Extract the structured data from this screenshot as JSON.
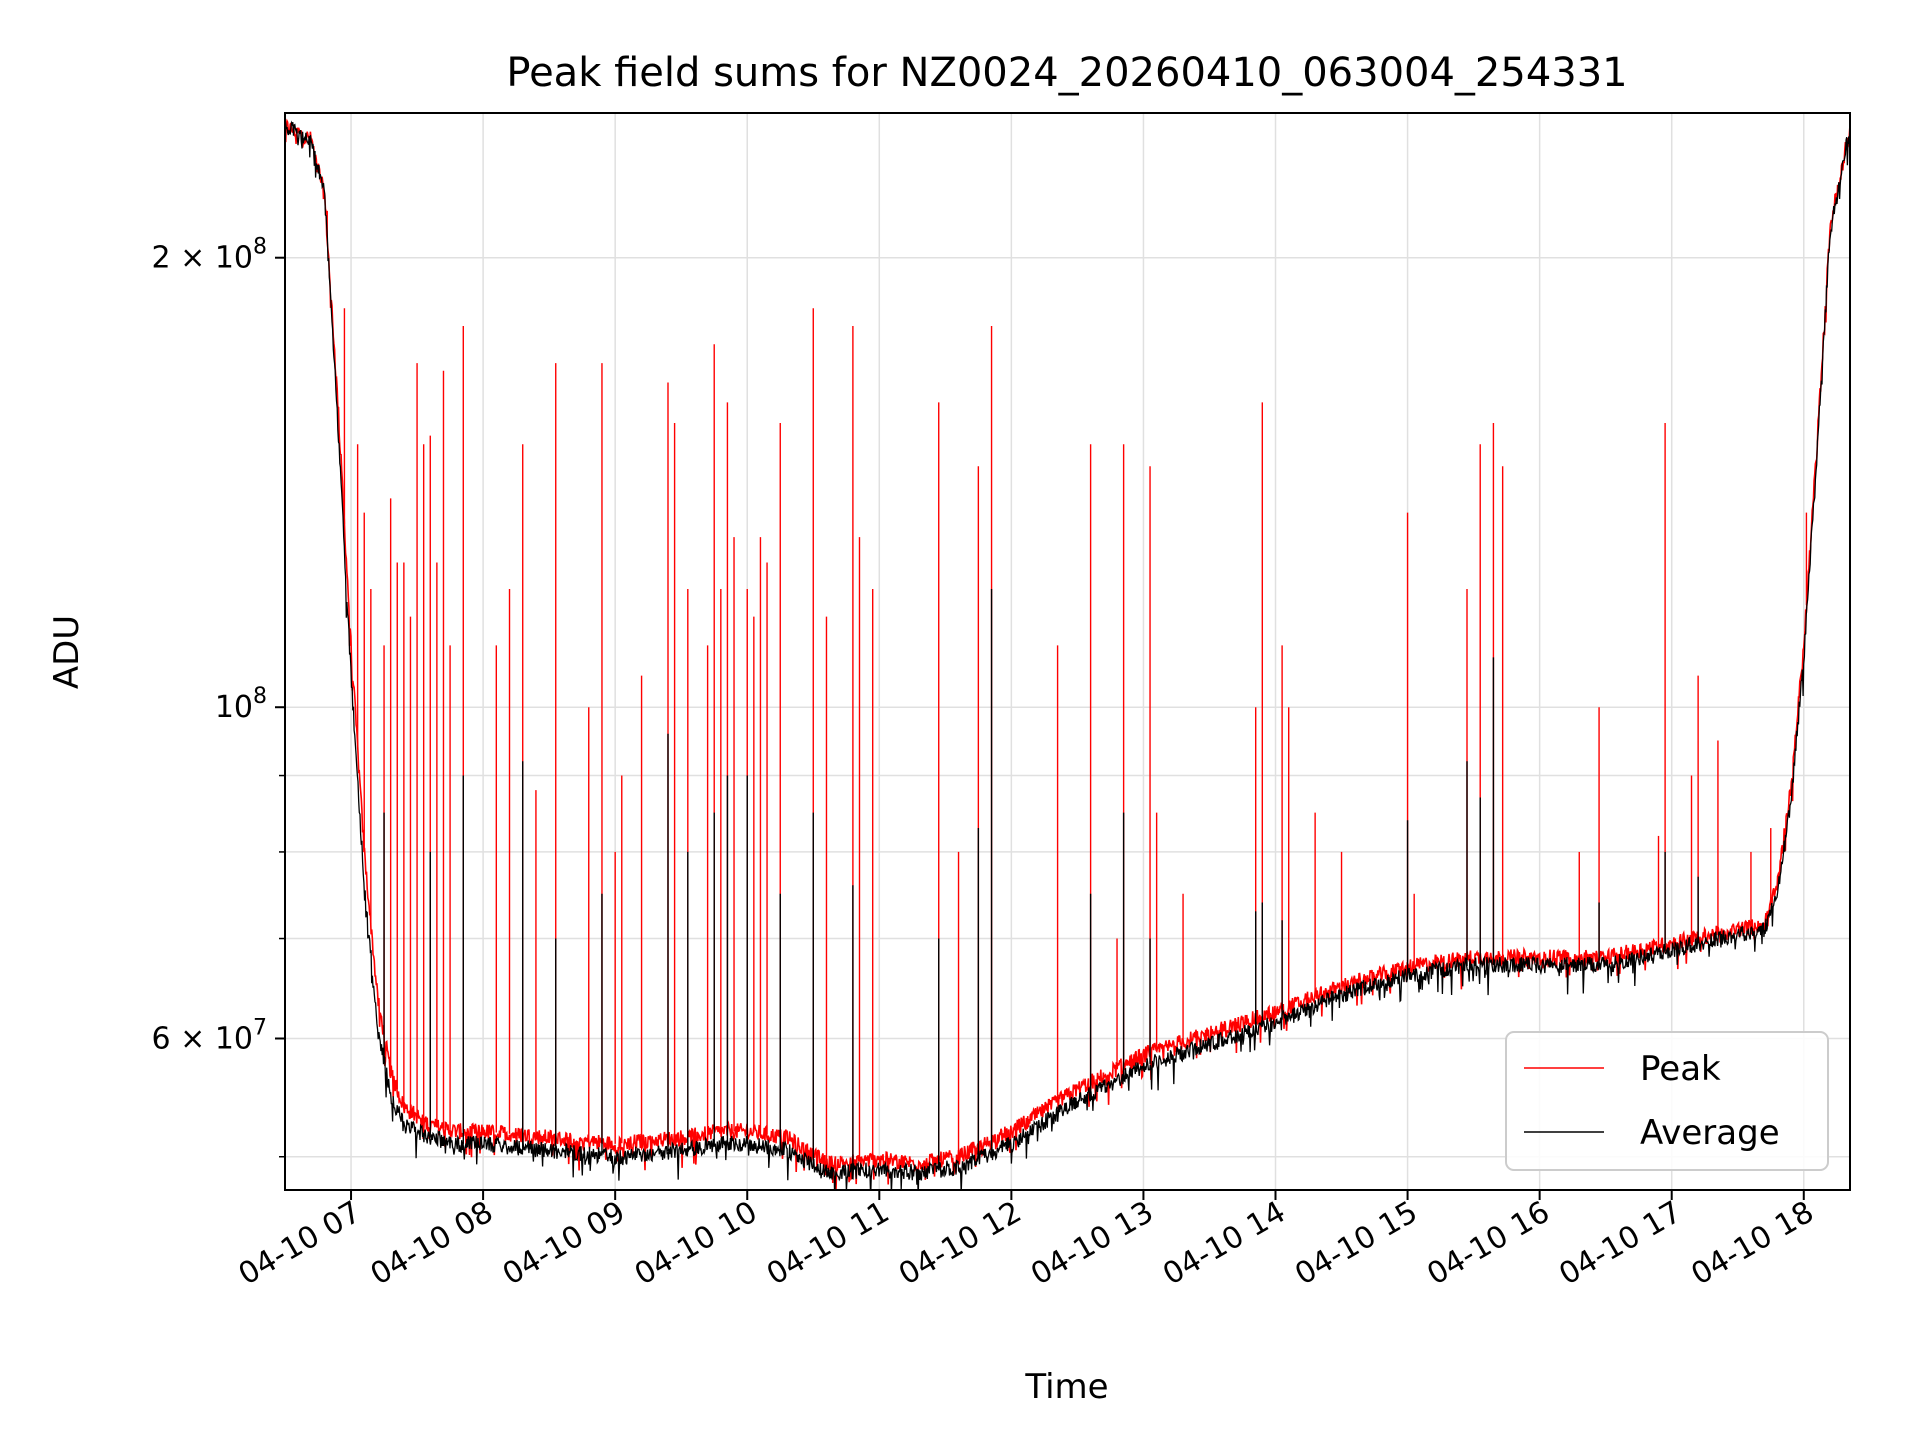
{
  "chart_data": {
    "type": "line",
    "title": "Peak field sums for NZ0024_20260410_063004_254331",
    "xlabel": "Time",
    "ylabel": "ADU",
    "yscale": "log",
    "xlim": [
      6.5,
      18.35
    ],
    "ylim": [
      47500000.0,
      250000000.0
    ],
    "x_unit": "hour of 2026-04-10",
    "grid": true,
    "legend_position": "lower-right",
    "x_ticks": [
      {
        "value": 7,
        "label": "04-10 07"
      },
      {
        "value": 8,
        "label": "04-10 08"
      },
      {
        "value": 9,
        "label": "04-10 09"
      },
      {
        "value": 10,
        "label": "04-10 10"
      },
      {
        "value": 11,
        "label": "04-10 11"
      },
      {
        "value": 12,
        "label": "04-10 12"
      },
      {
        "value": 13,
        "label": "04-10 13"
      },
      {
        "value": 14,
        "label": "04-10 14"
      },
      {
        "value": 15,
        "label": "04-10 15"
      },
      {
        "value": 16,
        "label": "04-10 16"
      },
      {
        "value": 17,
        "label": "04-10 17"
      },
      {
        "value": 18,
        "label": "04-10 18"
      }
    ],
    "y_major_ticks": [
      {
        "value": 60000000,
        "mantissa": "6",
        "exponent": "7"
      },
      {
        "value": 100000000,
        "mantissa": "",
        "exponent": "8"
      },
      {
        "value": 200000000,
        "mantissa": "2",
        "exponent": "8"
      }
    ],
    "y_minor_ticks": [
      50000000,
      70000000,
      80000000,
      90000000,
      300000000
    ],
    "times_symbol": "×",
    "base_label": "10",
    "series": [
      {
        "name": "Peak",
        "color": "#ff0000",
        "baseline": {
          "x": [
            6.5,
            6.7,
            6.8,
            6.9,
            7.0,
            7.1,
            7.2,
            7.3,
            7.4,
            7.6,
            7.8,
            8.0,
            8.5,
            9.0,
            9.5,
            9.8,
            10.0,
            10.3,
            10.6,
            11.0,
            11.3,
            11.6,
            12.0,
            12.5,
            13.0,
            13.5,
            14.0,
            14.5,
            15.0,
            15.5,
            16.0,
            16.5,
            17.0,
            17.5,
            17.7,
            17.8,
            17.9,
            18.0,
            18.1,
            18.2,
            18.35
          ],
          "y": [
            245000000.0,
            240000000.0,
            220000000.0,
            160000000.0,
            110000000.0,
            80000000.0,
            64000000.0,
            57000000.0,
            54000000.0,
            52500000.0,
            52000000.0,
            52000000.0,
            51500000.0,
            51000000.0,
            51500000.0,
            52000000.0,
            52000000.0,
            51500000.0,
            49500000.0,
            49800000.0,
            49500000.0,
            50000000.0,
            52000000.0,
            55500000.0,
            58500000.0,
            60500000.0,
            62500000.0,
            65000000.0,
            67000000.0,
            68000000.0,
            68000000.0,
            68000000.0,
            69500000.0,
            71000000.0,
            71500000.0,
            76000000.0,
            88000000.0,
            110000000.0,
            150000000.0,
            210000000.0,
            245000000.0
          ]
        },
        "spikes": [
          {
            "x": 6.82,
            "y": 215000000.0
          },
          {
            "x": 6.95,
            "y": 185000000.0
          },
          {
            "x": 7.0,
            "y": 110000000.0
          },
          {
            "x": 7.05,
            "y": 150000000.0
          },
          {
            "x": 7.1,
            "y": 135000000.0
          },
          {
            "x": 7.15,
            "y": 120000000.0
          },
          {
            "x": 7.25,
            "y": 110000000.0
          },
          {
            "x": 7.3,
            "y": 138000000.0
          },
          {
            "x": 7.35,
            "y": 125000000.0
          },
          {
            "x": 7.4,
            "y": 125000000.0
          },
          {
            "x": 7.45,
            "y": 115000000.0
          },
          {
            "x": 7.5,
            "y": 170000000.0
          },
          {
            "x": 7.55,
            "y": 150000000.0
          },
          {
            "x": 7.6,
            "y": 152000000.0
          },
          {
            "x": 7.65,
            "y": 125000000.0
          },
          {
            "x": 7.7,
            "y": 168000000.0
          },
          {
            "x": 7.75,
            "y": 110000000.0
          },
          {
            "x": 7.85,
            "y": 180000000.0
          },
          {
            "x": 8.1,
            "y": 110000000.0
          },
          {
            "x": 8.2,
            "y": 120000000.0
          },
          {
            "x": 8.3,
            "y": 150000000.0
          },
          {
            "x": 8.4,
            "y": 88000000.0
          },
          {
            "x": 8.55,
            "y": 170000000.0
          },
          {
            "x": 8.8,
            "y": 100000000.0
          },
          {
            "x": 8.9,
            "y": 170000000.0
          },
          {
            "x": 9.0,
            "y": 80000000.0
          },
          {
            "x": 9.05,
            "y": 90000000.0
          },
          {
            "x": 9.2,
            "y": 105000000.0
          },
          {
            "x": 9.4,
            "y": 165000000.0
          },
          {
            "x": 9.45,
            "y": 155000000.0
          },
          {
            "x": 9.55,
            "y": 120000000.0
          },
          {
            "x": 9.7,
            "y": 110000000.0
          },
          {
            "x": 9.75,
            "y": 175000000.0
          },
          {
            "x": 9.8,
            "y": 120000000.0
          },
          {
            "x": 9.85,
            "y": 160000000.0
          },
          {
            "x": 9.9,
            "y": 130000000.0
          },
          {
            "x": 10.0,
            "y": 120000000.0
          },
          {
            "x": 10.05,
            "y": 115000000.0
          },
          {
            "x": 10.1,
            "y": 130000000.0
          },
          {
            "x": 10.15,
            "y": 125000000.0
          },
          {
            "x": 10.25,
            "y": 155000000.0
          },
          {
            "x": 10.5,
            "y": 185000000.0
          },
          {
            "x": 10.6,
            "y": 115000000.0
          },
          {
            "x": 10.8,
            "y": 180000000.0
          },
          {
            "x": 10.85,
            "y": 130000000.0
          },
          {
            "x": 10.95,
            "y": 120000000.0
          },
          {
            "x": 11.45,
            "y": 160000000.0
          },
          {
            "x": 11.6,
            "y": 80000000.0
          },
          {
            "x": 11.75,
            "y": 145000000.0
          },
          {
            "x": 11.85,
            "y": 180000000.0
          },
          {
            "x": 12.35,
            "y": 110000000.0
          },
          {
            "x": 12.6,
            "y": 150000000.0
          },
          {
            "x": 12.8,
            "y": 70000000.0
          },
          {
            "x": 12.85,
            "y": 150000000.0
          },
          {
            "x": 13.05,
            "y": 145000000.0
          },
          {
            "x": 13.1,
            "y": 85000000.0
          },
          {
            "x": 13.3,
            "y": 75000000.0
          },
          {
            "x": 13.85,
            "y": 100000000.0
          },
          {
            "x": 13.9,
            "y": 160000000.0
          },
          {
            "x": 14.05,
            "y": 110000000.0
          },
          {
            "x": 14.1,
            "y": 100000000.0
          },
          {
            "x": 14.3,
            "y": 85000000.0
          },
          {
            "x": 14.5,
            "y": 80000000.0
          },
          {
            "x": 15.0,
            "y": 135000000.0
          },
          {
            "x": 15.05,
            "y": 75000000.0
          },
          {
            "x": 15.45,
            "y": 120000000.0
          },
          {
            "x": 15.55,
            "y": 150000000.0
          },
          {
            "x": 15.65,
            "y": 155000000.0
          },
          {
            "x": 15.72,
            "y": 145000000.0
          },
          {
            "x": 16.3,
            "y": 80000000.0
          },
          {
            "x": 16.45,
            "y": 100000000.0
          },
          {
            "x": 16.9,
            "y": 82000000.0
          },
          {
            "x": 16.95,
            "y": 155000000.0
          },
          {
            "x": 17.15,
            "y": 90000000.0
          },
          {
            "x": 17.2,
            "y": 105000000.0
          },
          {
            "x": 17.35,
            "y": 95000000.0
          },
          {
            "x": 17.6,
            "y": 80000000.0
          },
          {
            "x": 17.75,
            "y": 83000000.0
          },
          {
            "x": 18.02,
            "y": 135000000.0
          }
        ]
      },
      {
        "name": "Average",
        "color": "#000000",
        "baseline": {
          "x": [
            6.5,
            6.7,
            6.8,
            6.9,
            7.0,
            7.1,
            7.2,
            7.3,
            7.4,
            7.6,
            7.8,
            8.0,
            8.5,
            9.0,
            9.5,
            9.8,
            10.0,
            10.3,
            10.6,
            11.0,
            11.3,
            11.6,
            12.0,
            12.5,
            13.0,
            13.5,
            14.0,
            14.5,
            15.0,
            15.5,
            16.0,
            16.5,
            17.0,
            17.5,
            17.7,
            17.8,
            17.9,
            18.0,
            18.1,
            18.2,
            18.35
          ],
          "y": [
            245000000.0,
            240000000.0,
            220000000.0,
            155000000.0,
            105000000.0,
            76000000.0,
            61000000.0,
            55000000.0,
            52500000.0,
            51500000.0,
            51000000.0,
            51000000.0,
            50500000.0,
            50000000.0,
            50500000.0,
            51000000.0,
            51000000.0,
            50500000.0,
            48800000.0,
            49000000.0,
            48800000.0,
            49200000.0,
            51000000.0,
            54500000.0,
            57500000.0,
            59500000.0,
            61500000.0,
            64200000.0,
            66200000.0,
            67200000.0,
            67200000.0,
            67200000.0,
            68800000.0,
            70500000.0,
            71000000.0,
            75000000.0,
            86000000.0,
            108000000.0,
            148000000.0,
            208000000.0,
            245000000.0
          ]
        },
        "spikes": [
          {
            "x": 7.25,
            "y": 85000000.0
          },
          {
            "x": 7.6,
            "y": 80000000.0
          },
          {
            "x": 7.85,
            "y": 90000000.0
          },
          {
            "x": 8.3,
            "y": 92000000.0
          },
          {
            "x": 8.55,
            "y": 70000000.0
          },
          {
            "x": 8.9,
            "y": 75000000.0
          },
          {
            "x": 9.4,
            "y": 96000000.0
          },
          {
            "x": 9.55,
            "y": 80000000.0
          },
          {
            "x": 9.75,
            "y": 85000000.0
          },
          {
            "x": 9.85,
            "y": 90000000.0
          },
          {
            "x": 10.0,
            "y": 90000000.0
          },
          {
            "x": 10.25,
            "y": 75000000.0
          },
          {
            "x": 10.5,
            "y": 85000000.0
          },
          {
            "x": 10.8,
            "y": 76000000.0
          },
          {
            "x": 11.45,
            "y": 70000000.0
          },
          {
            "x": 11.75,
            "y": 83000000.0
          },
          {
            "x": 11.85,
            "y": 120000000.0
          },
          {
            "x": 12.6,
            "y": 75000000.0
          },
          {
            "x": 12.85,
            "y": 85000000.0
          },
          {
            "x": 13.05,
            "y": 70000000.0
          },
          {
            "x": 13.85,
            "y": 73000000.0
          },
          {
            "x": 13.9,
            "y": 74000000.0
          },
          {
            "x": 14.05,
            "y": 72000000.0
          },
          {
            "x": 15.0,
            "y": 84000000.0
          },
          {
            "x": 15.45,
            "y": 92000000.0
          },
          {
            "x": 15.55,
            "y": 87000000.0
          },
          {
            "x": 15.65,
            "y": 108000000.0
          },
          {
            "x": 16.45,
            "y": 74000000.0
          },
          {
            "x": 16.95,
            "y": 80000000.0
          },
          {
            "x": 17.2,
            "y": 77000000.0
          }
        ]
      }
    ]
  }
}
